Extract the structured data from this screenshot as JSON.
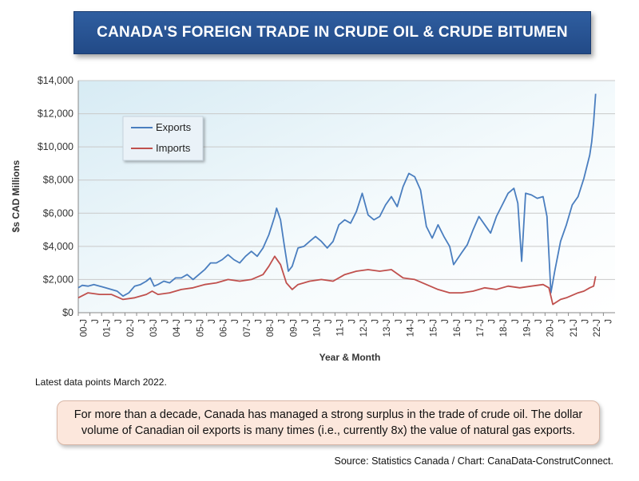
{
  "chart_data": {
    "type": "line",
    "title": "CANADA'S FOREIGN TRADE IN CRUDE OIL & CRUDE BITUMEN",
    "xlabel": "Year & Month",
    "ylabel": "$s CAD Millions",
    "ylim": [
      0,
      14000
    ],
    "yticks": [
      "$0",
      "$2,000",
      "$4,000",
      "$6,000",
      "$8,000",
      "$10,000",
      "$12,000",
      "$14,000"
    ],
    "x_tick_labels": [
      "00-J",
      "J",
      "01-J",
      "J",
      "02-J",
      "J",
      "03-J",
      "J",
      "04-J",
      "J",
      "05-J",
      "J",
      "06-J",
      "J",
      "07-J",
      "J",
      "08-J",
      "J",
      "09-J",
      "J",
      "10-J",
      "J",
      "11-J",
      "J",
      "12-J",
      "J",
      "13-J",
      "J",
      "14-J",
      "J",
      "15-J",
      "J",
      "16-J",
      "J",
      "17-J",
      "J",
      "18-J",
      "J",
      "19-J",
      "J",
      "20-J",
      "J",
      "21-J",
      "J",
      "22-J",
      "J"
    ],
    "x_start": "2000-01",
    "x_end": "2022-03",
    "legend": "upper-left",
    "grid": true,
    "series": [
      {
        "name": "Exports",
        "color": "#4a7ebf",
        "points": [
          [
            "2000-01",
            1500
          ],
          [
            "2000-03",
            1650
          ],
          [
            "2000-06",
            1600
          ],
          [
            "2000-09",
            1700
          ],
          [
            "2000-12",
            1600
          ],
          [
            "2001-03",
            1500
          ],
          [
            "2001-06",
            1400
          ],
          [
            "2001-09",
            1300
          ],
          [
            "2001-12",
            1000
          ],
          [
            "2002-03",
            1200
          ],
          [
            "2002-06",
            1600
          ],
          [
            "2002-09",
            1700
          ],
          [
            "2002-12",
            1900
          ],
          [
            "2003-02",
            2100
          ],
          [
            "2003-04",
            1600
          ],
          [
            "2003-06",
            1700
          ],
          [
            "2003-09",
            1900
          ],
          [
            "2003-12",
            1800
          ],
          [
            "2004-03",
            2100
          ],
          [
            "2004-06",
            2100
          ],
          [
            "2004-09",
            2300
          ],
          [
            "2004-12",
            2000
          ],
          [
            "2005-03",
            2300
          ],
          [
            "2005-06",
            2600
          ],
          [
            "2005-09",
            3000
          ],
          [
            "2005-12",
            3000
          ],
          [
            "2006-03",
            3200
          ],
          [
            "2006-06",
            3500
          ],
          [
            "2006-09",
            3200
          ],
          [
            "2006-12",
            3000
          ],
          [
            "2007-03",
            3400
          ],
          [
            "2007-06",
            3700
          ],
          [
            "2007-09",
            3400
          ],
          [
            "2007-12",
            3900
          ],
          [
            "2008-03",
            4700
          ],
          [
            "2008-06",
            5800
          ],
          [
            "2008-07",
            6300
          ],
          [
            "2008-09",
            5600
          ],
          [
            "2008-11",
            4000
          ],
          [
            "2009-01",
            2500
          ],
          [
            "2009-03",
            2800
          ],
          [
            "2009-06",
            3900
          ],
          [
            "2009-09",
            4000
          ],
          [
            "2009-12",
            4300
          ],
          [
            "2010-03",
            4600
          ],
          [
            "2010-06",
            4300
          ],
          [
            "2010-09",
            3900
          ],
          [
            "2010-12",
            4300
          ],
          [
            "2011-03",
            5300
          ],
          [
            "2011-06",
            5600
          ],
          [
            "2011-09",
            5400
          ],
          [
            "2011-12",
            6100
          ],
          [
            "2012-03",
            7200
          ],
          [
            "2012-06",
            5900
          ],
          [
            "2012-09",
            5600
          ],
          [
            "2012-12",
            5800
          ],
          [
            "2013-03",
            6500
          ],
          [
            "2013-06",
            7000
          ],
          [
            "2013-09",
            6400
          ],
          [
            "2013-12",
            7600
          ],
          [
            "2014-03",
            8400
          ],
          [
            "2014-06",
            8200
          ],
          [
            "2014-09",
            7400
          ],
          [
            "2014-12",
            5200
          ],
          [
            "2015-03",
            4500
          ],
          [
            "2015-06",
            5300
          ],
          [
            "2015-09",
            4600
          ],
          [
            "2015-12",
            4000
          ],
          [
            "2016-02",
            2900
          ],
          [
            "2016-06",
            3600
          ],
          [
            "2016-09",
            4100
          ],
          [
            "2016-12",
            5000
          ],
          [
            "2017-03",
            5800
          ],
          [
            "2017-06",
            5300
          ],
          [
            "2017-09",
            4800
          ],
          [
            "2017-12",
            5800
          ],
          [
            "2018-03",
            6500
          ],
          [
            "2018-06",
            7200
          ],
          [
            "2018-09",
            7500
          ],
          [
            "2018-11",
            6600
          ],
          [
            "2019-01",
            3100
          ],
          [
            "2019-03",
            7200
          ],
          [
            "2019-06",
            7100
          ],
          [
            "2019-09",
            6900
          ],
          [
            "2019-12",
            7000
          ],
          [
            "2020-02",
            5800
          ],
          [
            "2020-04",
            1200
          ],
          [
            "2020-06",
            2500
          ],
          [
            "2020-09",
            4300
          ],
          [
            "2020-12",
            5300
          ],
          [
            "2021-03",
            6500
          ],
          [
            "2021-06",
            7000
          ],
          [
            "2021-09",
            8100
          ],
          [
            "2021-12",
            9500
          ],
          [
            "2022-01",
            10300
          ],
          [
            "2022-02",
            11500
          ],
          [
            "2022-03",
            13200
          ]
        ]
      },
      {
        "name": "Imports",
        "color": "#c0504d",
        "points": [
          [
            "2000-01",
            900
          ],
          [
            "2000-06",
            1200
          ],
          [
            "2000-12",
            1100
          ],
          [
            "2001-06",
            1100
          ],
          [
            "2001-12",
            800
          ],
          [
            "2002-06",
            900
          ],
          [
            "2002-12",
            1100
          ],
          [
            "2003-03",
            1300
          ],
          [
            "2003-06",
            1100
          ],
          [
            "2003-12",
            1200
          ],
          [
            "2004-06",
            1400
          ],
          [
            "2004-12",
            1500
          ],
          [
            "2005-06",
            1700
          ],
          [
            "2005-12",
            1800
          ],
          [
            "2006-06",
            2000
          ],
          [
            "2006-12",
            1900
          ],
          [
            "2007-06",
            2000
          ],
          [
            "2007-12",
            2300
          ],
          [
            "2008-03",
            2800
          ],
          [
            "2008-06",
            3400
          ],
          [
            "2008-09",
            2900
          ],
          [
            "2008-12",
            1800
          ],
          [
            "2009-03",
            1400
          ],
          [
            "2009-06",
            1700
          ],
          [
            "2009-12",
            1900
          ],
          [
            "2010-06",
            2000
          ],
          [
            "2010-12",
            1900
          ],
          [
            "2011-06",
            2300
          ],
          [
            "2011-12",
            2500
          ],
          [
            "2012-06",
            2600
          ],
          [
            "2012-12",
            2500
          ],
          [
            "2013-06",
            2600
          ],
          [
            "2013-12",
            2100
          ],
          [
            "2014-06",
            2000
          ],
          [
            "2014-12",
            1700
          ],
          [
            "2015-06",
            1400
          ],
          [
            "2015-12",
            1200
          ],
          [
            "2016-06",
            1200
          ],
          [
            "2016-12",
            1300
          ],
          [
            "2017-06",
            1500
          ],
          [
            "2017-12",
            1400
          ],
          [
            "2018-06",
            1600
          ],
          [
            "2018-12",
            1500
          ],
          [
            "2019-06",
            1600
          ],
          [
            "2019-12",
            1700
          ],
          [
            "2020-03",
            1500
          ],
          [
            "2020-05",
            500
          ],
          [
            "2020-09",
            800
          ],
          [
            "2020-12",
            900
          ],
          [
            "2021-06",
            1200
          ],
          [
            "2021-09",
            1300
          ],
          [
            "2021-12",
            1500
          ],
          [
            "2022-02",
            1600
          ],
          [
            "2022-03",
            2200
          ]
        ]
      }
    ]
  },
  "notes": {
    "latest": "Latest data points March 2022.",
    "summary": "For more than a decade, Canada has managed a strong surplus in the trade of crude oil. The dollar volume of Canadian oil exports is many times (i.e., currently 8x) the value of natural gas exports.",
    "source": "Source: Statistics Canada / Chart: CanaData-ConstrutConnect."
  }
}
